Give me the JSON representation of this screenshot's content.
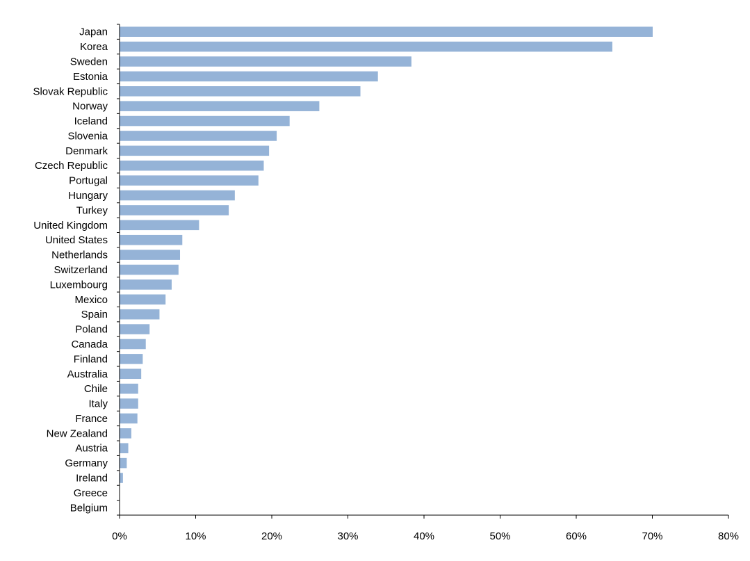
{
  "chart_data": {
    "type": "bar",
    "orientation": "horizontal",
    "categories": [
      "Japan",
      "Korea",
      "Sweden",
      "Estonia",
      "Slovak Republic",
      "Norway",
      "Iceland",
      "Slovenia",
      "Denmark",
      "Czech Republic",
      "Portugal",
      "Hungary",
      "Turkey",
      "United Kingdom",
      "United States",
      "Netherlands",
      "Switzerland",
      "Luxembourg",
      "Mexico",
      "Spain",
      "Poland",
      "Canada",
      "Finland",
      "Australia",
      "Chile",
      "Italy",
      "France",
      "New Zealand",
      "Austria",
      "Germany",
      "Ireland",
      "Greece",
      "Belgium"
    ],
    "values": [
      70.0,
      64.7,
      38.3,
      33.9,
      31.6,
      26.2,
      22.3,
      20.6,
      19.6,
      18.9,
      18.2,
      15.1,
      14.3,
      10.4,
      8.2,
      7.9,
      7.7,
      6.8,
      6.0,
      5.2,
      3.9,
      3.4,
      3.0,
      2.8,
      2.4,
      2.4,
      2.3,
      1.5,
      1.1,
      0.9,
      0.4,
      0.0,
      0.0
    ],
    "xlim": [
      0,
      80
    ],
    "x_ticks": [
      0,
      10,
      20,
      30,
      40,
      50,
      60,
      70,
      80
    ],
    "x_tick_labels": [
      "0%",
      "10%",
      "20%",
      "30%",
      "40%",
      "50%",
      "60%",
      "70%",
      "80%"
    ],
    "title": "",
    "xlabel": "",
    "ylabel": "",
    "grid": false,
    "legend": "none",
    "bar_color": "#95B3D7"
  }
}
